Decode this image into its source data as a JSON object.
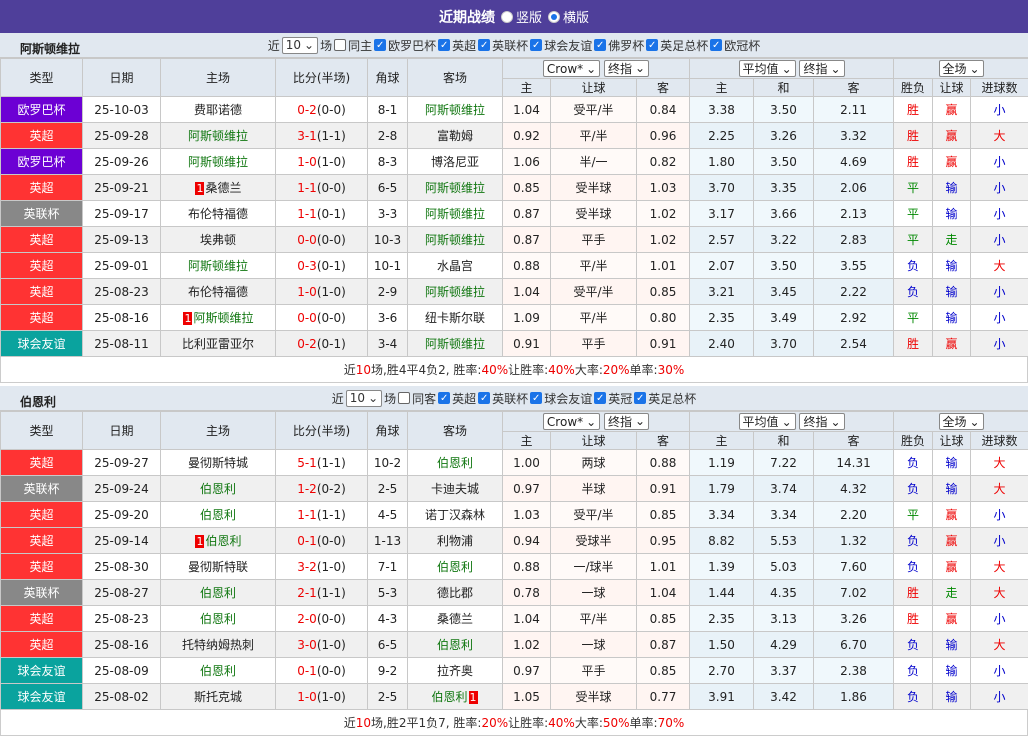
{
  "header": {
    "title": "近期战绩",
    "view_vertical": "竖版",
    "view_horizontal": "横版",
    "selected": "横版"
  },
  "colors": {
    "欧罗巴杯": "#6c00d4",
    "英超": "#f33",
    "英联杯": "#888888",
    "球会友谊": "#0aa39e"
  },
  "columns": {
    "type": "类型",
    "date": "日期",
    "home": "主场",
    "score": "比分(半场)",
    "corner": "角球",
    "away": "客场",
    "odds1_select": "Crow*",
    "odds1_kind": "终指",
    "odds2_select": "平均值",
    "odds2_kind": "终指",
    "result_select": "全场",
    "sub": [
      "主",
      "让球",
      "客",
      "主",
      "和",
      "客",
      "胜负",
      "让球",
      "进球数"
    ]
  },
  "sections": [
    {
      "team": "阿斯顿维拉",
      "near": "近",
      "count": "10",
      "unit": "场",
      "same_label": "同主",
      "same_checked": false,
      "leagues": [
        "欧罗巴杯",
        "英超",
        "英联杯",
        "球会友谊",
        "佛罗杯",
        "英足总杯",
        "欧冠杯"
      ],
      "rows": [
        [
          "欧罗巴杯",
          "25-10-03",
          "费耶诺德",
          "0-2",
          "(0-0)",
          "8-1",
          "阿斯顿维拉",
          "1.04",
          "受平/半",
          "0.84",
          "3.38",
          "3.50",
          "2.11",
          "胜",
          "赢",
          "小",
          "away",
          "",
          ""
        ],
        [
          "英超",
          "25-09-28",
          "阿斯顿维拉",
          "3-1",
          "(1-1)",
          "2-8",
          "富勒姆",
          "0.92",
          "平/半",
          "0.96",
          "2.25",
          "3.26",
          "3.32",
          "胜",
          "赢",
          "大",
          "home",
          "",
          ""
        ],
        [
          "欧罗巴杯",
          "25-09-26",
          "阿斯顿维拉",
          "1-0",
          "(1-0)",
          "8-3",
          "博洛尼亚",
          "1.06",
          "半/一",
          "0.82",
          "1.80",
          "3.50",
          "4.69",
          "胜",
          "赢",
          "小",
          "home",
          "",
          ""
        ],
        [
          "英超",
          "25-09-21",
          "桑德兰",
          "1-1",
          "(0-0)",
          "6-5",
          "阿斯顿维拉",
          "0.85",
          "受半球",
          "1.03",
          "3.70",
          "3.35",
          "2.06",
          "平",
          "输",
          "小",
          "away",
          "1",
          ""
        ],
        [
          "英联杯",
          "25-09-17",
          "布伦特福德",
          "1-1",
          "(0-1)",
          "3-3",
          "阿斯顿维拉",
          "0.87",
          "受半球",
          "1.02",
          "3.17",
          "3.66",
          "2.13",
          "平",
          "输",
          "小",
          "away",
          "",
          ""
        ],
        [
          "英超",
          "25-09-13",
          "埃弗顿",
          "0-0",
          "(0-0)",
          "10-3",
          "阿斯顿维拉",
          "0.87",
          "平手",
          "1.02",
          "2.57",
          "3.22",
          "2.83",
          "平",
          "走",
          "小",
          "away",
          "",
          ""
        ],
        [
          "英超",
          "25-09-01",
          "阿斯顿维拉",
          "0-3",
          "(0-1)",
          "10-1",
          "水晶宫",
          "0.88",
          "平/半",
          "1.01",
          "2.07",
          "3.50",
          "3.55",
          "负",
          "输",
          "大",
          "home",
          "",
          ""
        ],
        [
          "英超",
          "25-08-23",
          "布伦特福德",
          "1-0",
          "(1-0)",
          "2-9",
          "阿斯顿维拉",
          "1.04",
          "受平/半",
          "0.85",
          "3.21",
          "3.45",
          "2.22",
          "负",
          "输",
          "小",
          "away",
          "",
          ""
        ],
        [
          "英超",
          "25-08-16",
          "阿斯顿维拉",
          "0-0",
          "(0-0)",
          "3-6",
          "纽卡斯尔联",
          "1.09",
          "平/半",
          "0.80",
          "2.35",
          "3.49",
          "2.92",
          "平",
          "输",
          "小",
          "home",
          "1",
          ""
        ],
        [
          "球会友谊",
          "25-08-11",
          "比利亚雷亚尔",
          "0-2",
          "(0-1)",
          "3-4",
          "阿斯顿维拉",
          "0.91",
          "平手",
          "0.91",
          "2.40",
          "3.70",
          "2.54",
          "胜",
          "赢",
          "小",
          "away",
          "",
          ""
        ]
      ],
      "summary": {
        "p1": "近",
        "n": "10",
        "p2": "场,胜4平4负2, 胜率:",
        "win": "40%",
        "p3": " 让胜率:",
        "hwin": "40%",
        "p4": " 大率:",
        "big": "20%",
        "p5": " 单率:",
        "odd": "30%"
      }
    },
    {
      "team": "伯恩利",
      "near": "近",
      "count": "10",
      "unit": "场",
      "same_label": "同客",
      "same_checked": false,
      "leagues": [
        "英超",
        "英联杯",
        "球会友谊",
        "英冠",
        "英足总杯"
      ],
      "rows": [
        [
          "英超",
          "25-09-27",
          "曼彻斯特城",
          "5-1",
          "(1-1)",
          "10-2",
          "伯恩利",
          "1.00",
          "两球",
          "0.88",
          "1.19",
          "7.22",
          "14.31",
          "负",
          "输",
          "大",
          "away",
          "",
          ""
        ],
        [
          "英联杯",
          "25-09-24",
          "伯恩利",
          "1-2",
          "(0-2)",
          "2-5",
          "卡迪夫城",
          "0.97",
          "半球",
          "0.91",
          "1.79",
          "3.74",
          "4.32",
          "负",
          "输",
          "大",
          "home",
          "",
          ""
        ],
        [
          "英超",
          "25-09-20",
          "伯恩利",
          "1-1",
          "(1-1)",
          "4-5",
          "诺丁汉森林",
          "1.03",
          "受平/半",
          "0.85",
          "3.34",
          "3.34",
          "2.20",
          "平",
          "赢",
          "小",
          "home",
          "",
          ""
        ],
        [
          "英超",
          "25-09-14",
          "伯恩利",
          "0-1",
          "(0-0)",
          "1-13",
          "利物浦",
          "0.94",
          "受球半",
          "0.95",
          "8.82",
          "5.53",
          "1.32",
          "负",
          "赢",
          "小",
          "home",
          "1",
          ""
        ],
        [
          "英超",
          "25-08-30",
          "曼彻斯特联",
          "3-2",
          "(1-0)",
          "7-1",
          "伯恩利",
          "0.88",
          "一/球半",
          "1.01",
          "1.39",
          "5.03",
          "7.60",
          "负",
          "赢",
          "大",
          "away",
          "",
          ""
        ],
        [
          "英联杯",
          "25-08-27",
          "伯恩利",
          "2-1",
          "(1-1)",
          "5-3",
          "德比郡",
          "0.78",
          "一球",
          "1.04",
          "1.44",
          "4.35",
          "7.02",
          "胜",
          "走",
          "大",
          "home",
          "",
          ""
        ],
        [
          "英超",
          "25-08-23",
          "伯恩利",
          "2-0",
          "(0-0)",
          "4-3",
          "桑德兰",
          "1.04",
          "平/半",
          "0.85",
          "2.35",
          "3.13",
          "3.26",
          "胜",
          "赢",
          "小",
          "home",
          "",
          ""
        ],
        [
          "英超",
          "25-08-16",
          "托特纳姆热刺",
          "3-0",
          "(1-0)",
          "6-5",
          "伯恩利",
          "1.02",
          "一球",
          "0.87",
          "1.50",
          "4.29",
          "6.70",
          "负",
          "输",
          "大",
          "away",
          "",
          ""
        ],
        [
          "球会友谊",
          "25-08-09",
          "伯恩利",
          "0-1",
          "(0-0)",
          "9-2",
          "拉齐奥",
          "0.97",
          "平手",
          "0.85",
          "2.70",
          "3.37",
          "2.38",
          "负",
          "输",
          "小",
          "home",
          "",
          ""
        ],
        [
          "球会友谊",
          "25-08-02",
          "斯托克城",
          "1-0",
          "(1-0)",
          "2-5",
          "伯恩利",
          "1.05",
          "受半球",
          "0.77",
          "3.91",
          "3.42",
          "1.86",
          "负",
          "输",
          "小",
          "away",
          "",
          "1"
        ]
      ],
      "summary": {
        "p1": "近",
        "n": "10",
        "p2": "场,胜2平1负7, 胜率:",
        "win": "20%",
        "p3": " 让胜率:",
        "hwin": "40%",
        "p4": " 大率:",
        "big": "50%",
        "p5": " 单率:",
        "odd": "70%"
      }
    }
  ]
}
